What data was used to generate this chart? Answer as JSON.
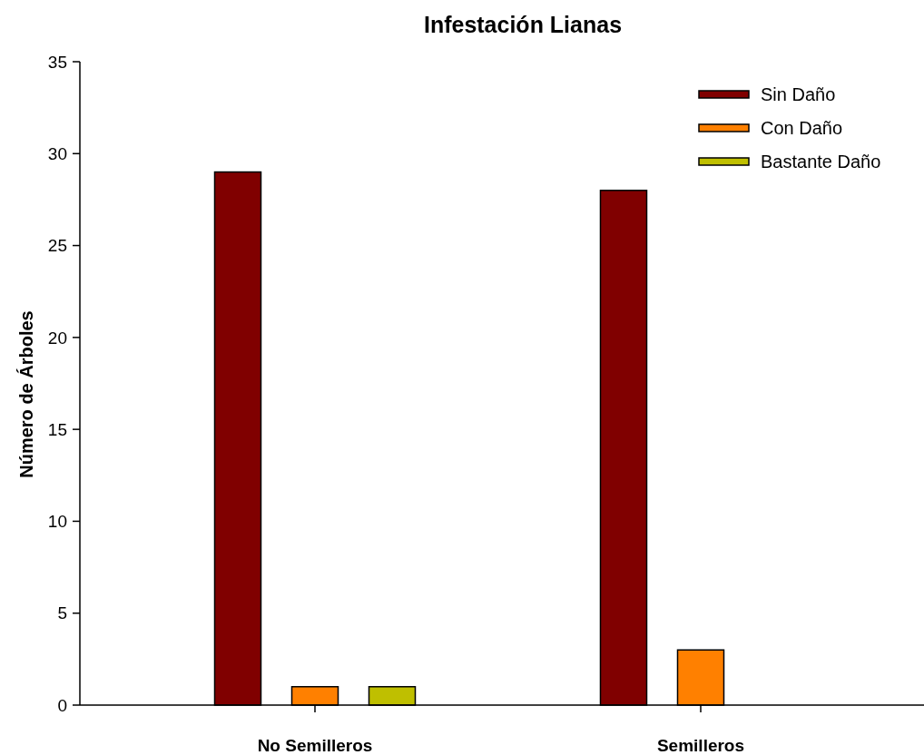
{
  "chart_data": {
    "type": "bar",
    "title": "Infestación Lianas",
    "ylabel": "Número de Árboles",
    "categories": [
      "No Semilleros",
      "Semilleros"
    ],
    "series": [
      {
        "name": "Sin Daño",
        "color": "#800000",
        "values": [
          29,
          28
        ]
      },
      {
        "name": "Con Daño",
        "color": "#ff8000",
        "values": [
          1,
          3
        ]
      },
      {
        "name": "Bastante Daño",
        "color": "#bfbf00",
        "values": [
          1,
          0
        ]
      }
    ],
    "ylim": [
      0,
      35
    ],
    "yticks": [
      0,
      5,
      10,
      15,
      20,
      25,
      30,
      35
    ],
    "grid": false,
    "legend": "top right"
  }
}
